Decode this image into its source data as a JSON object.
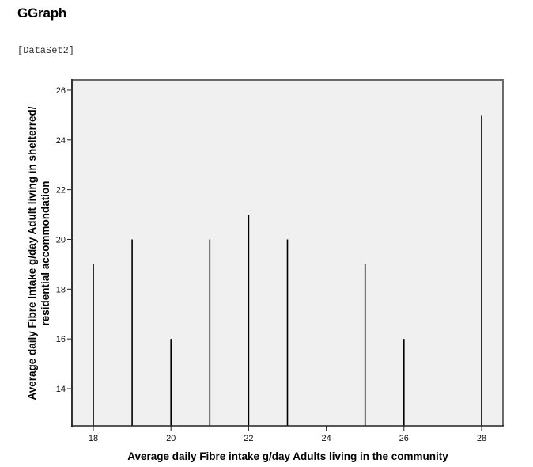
{
  "header": {
    "title": "GGraph",
    "dataset_label": "[DataSet2]"
  },
  "chart_data": {
    "type": "bar",
    "subtype": "drop-line",
    "title": "",
    "xlabel": "Average daily Fibre intake g/day Adults living in the community",
    "ylabel_line1": "Average daily Fibre Intake g/day Adult living in shelterred/",
    "ylabel_line2": "residential accommondation",
    "x": [
      18,
      19,
      20,
      21,
      22,
      23,
      25,
      26,
      28
    ],
    "values": [
      19,
      20,
      16,
      20,
      21,
      20,
      19,
      16,
      25
    ],
    "xlim": [
      17.45,
      28.55
    ],
    "ylim": [
      12.5,
      26.4
    ],
    "xticks": [
      "18",
      "20",
      "22",
      "24",
      "26",
      "28"
    ],
    "yticks": [
      "14",
      "16",
      "18",
      "20",
      "22",
      "24",
      "26"
    ],
    "grid": false,
    "legend": null,
    "plot_background": "#f0f0f0",
    "line_color": "#000000"
  }
}
